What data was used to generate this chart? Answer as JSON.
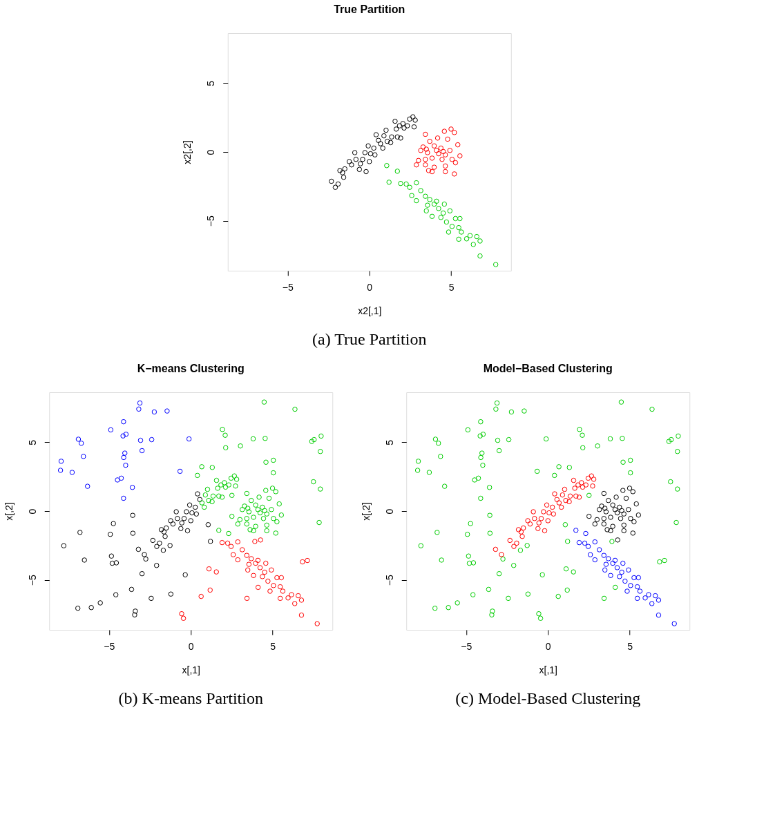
{
  "chart_data": [
    {
      "type": "scatter",
      "title": "True Partition",
      "xlabel": "x2[,1]",
      "ylabel": "x2[,2]",
      "annotations": [
        "(a) True Partition"
      ],
      "xlim": [
        -8.65,
        8.65
      ],
      "ylim": [
        -8.63,
        8.63
      ],
      "xticks": [
        -5,
        0,
        5
      ],
      "yticks": [
        -5,
        0,
        5
      ],
      "marker": "circle",
      "grid": false,
      "legend": false,
      "series": [
        {
          "color": "#000000",
          "x": [
            -2.32,
            -2.08,
            -1.91,
            -1.8,
            -1.57,
            -1.5,
            -1.23,
            -1.09,
            -0.89,
            -0.61,
            -0.55,
            -0.41,
            -0.2,
            -0.27,
            -0.07,
            0.07,
            0.27,
            0.34,
            0.41,
            0.55,
            0.0,
            -0.82,
            -1.64,
            0.68,
            0.82,
            0.89,
            1.02,
            1.09,
            1.3,
            1.36,
            1.57,
            1.64,
            1.71,
            1.91,
            1.84,
            2.05,
            2.12,
            2.32,
            2.46,
            2.66,
            2.73,
            2.8
          ],
          "values": [
            -2.13,
            -2.57,
            -2.33,
            -1.35,
            -1.84,
            -1.23,
            -0.7,
            -0.94,
            -0.05,
            -1.27,
            -0.86,
            -0.54,
            -1.43,
            -0.05,
            0.44,
            -0.13,
            0.28,
            -0.21,
            1.25,
            0.84,
            -0.7,
            -0.54,
            -1.51,
            0.6,
            0.28,
            1.17,
            1.58,
            0.77,
            0.68,
            1.09,
            2.23,
            1.66,
            1.09,
            1.01,
            1.9,
            2.06,
            1.74,
            1.9,
            2.39,
            2.55,
            1.82,
            2.31
          ]
        },
        {
          "color": "#ff0000",
          "x": [
            3.42,
            4.58,
            4.99,
            5.19,
            4.17,
            4.78,
            3.69,
            5.4,
            3.28,
            3.96,
            4.37,
            4.92,
            3.14,
            3.55,
            4.23,
            4.64,
            5.53,
            3.0,
            3.42,
            3.83,
            4.44,
            5.05,
            2.87,
            3.42,
            3.96,
            4.64,
            5.26,
            3.62,
            3.83,
            4.64,
            5.19,
            4.1,
            4.51,
            3.48
          ],
          "values": [
            1.28,
            1.5,
            1.66,
            1.41,
            1.01,
            0.93,
            0.77,
            0.52,
            0.36,
            0.44,
            0.28,
            0.11,
            0.11,
            -0.05,
            -0.13,
            -0.21,
            -0.29,
            -0.62,
            -0.54,
            -0.45,
            -0.54,
            -0.54,
            -0.94,
            -0.94,
            -1.11,
            -1.02,
            -0.78,
            -1.35,
            -1.43,
            -1.43,
            -1.6,
            0.11,
            0.03,
            0.2
          ]
        },
        {
          "color": "#00cd00",
          "x": [
            1.06,
            1.2,
            1.71,
            1.91,
            2.25,
            2.87,
            2.46,
            3.14,
            2.59,
            3.42,
            2.87,
            3.69,
            3.96,
            3.55,
            4.58,
            3.48,
            4.23,
            3.83,
            4.51,
            4.92,
            4.71,
            5.26,
            5.53,
            4.37,
            5.05,
            5.46,
            4.84,
            5.62,
            5.46,
            6.15,
            5.94,
            6.56,
            6.35,
            6.76,
            6.76,
            7.72,
            4.1
          ],
          "values": [
            -0.99,
            -2.2,
            -1.4,
            -2.29,
            -2.33,
            -2.24,
            -2.57,
            -2.81,
            -3.17,
            -3.22,
            -3.54,
            -3.46,
            -3.79,
            -3.87,
            -3.79,
            -4.28,
            -4.11,
            -4.68,
            -4.44,
            -4.28,
            -5.09,
            -4.84,
            -4.84,
            -4.76,
            -5.41,
            -5.5,
            -5.82,
            -5.82,
            -6.34,
            -6.08,
            -6.31,
            -6.15,
            -6.72,
            -6.47,
            -7.56,
            -8.18,
            -3.58
          ]
        }
      ]
    },
    {
      "type": "scatter",
      "title": "K−means Clustering",
      "xlabel": "x[,1]",
      "ylabel": "x[,2]",
      "annotations": [
        "(b) K-means Partition"
      ],
      "xlim": [
        -8.65,
        8.65
      ],
      "ylim": [
        -8.63,
        8.63
      ],
      "xticks": [
        -5,
        0,
        5
      ],
      "yticks": [
        -5,
        0,
        5
      ],
      "marker": "circle",
      "grid": false,
      "legend": false,
      "series": [
        {
          "color": "#000000",
          "x": [
            -2.32,
            -2.08,
            -1.91,
            -1.8,
            -1.57,
            -1.5,
            -1.23,
            -1.09,
            -0.89,
            -0.61,
            -0.55,
            -0.41,
            -0.2,
            -0.27,
            -0.07,
            0.07,
            0.27,
            0.34,
            0.41,
            0.55,
            0.0,
            -0.82,
            -1.64,
            1.06,
            1.2,
            -3.55,
            -4.73,
            -6.77,
            -4.92,
            -3.54,
            -7.76,
            -2.75,
            -4.85,
            -4.8,
            -4.55,
            -6.5,
            -2.09,
            -2.98,
            -0.34,
            -3.62,
            -4.58,
            -2.42,
            -1.22,
            -5.53,
            -6.08,
            -6.9,
            -3.39,
            -3.43,
            -1.27,
            -1.68,
            -3.2,
            -2.84
          ],
          "values": [
            -2.13,
            -2.57,
            -2.33,
            -1.35,
            -1.84,
            -1.23,
            -0.7,
            -0.94,
            -0.05,
            -1.27,
            -0.86,
            -0.54,
            -1.43,
            -0.05,
            0.44,
            -0.13,
            0.28,
            -0.21,
            1.25,
            0.84,
            -0.7,
            -0.54,
            -1.51,
            -0.99,
            -2.2,
            -0.31,
            -0.91,
            -1.55,
            -1.69,
            -1.61,
            -2.52,
            -3.48,
            -3.27,
            -3.79,
            -3.76,
            -3.56,
            -3.95,
            -4.55,
            -4.63,
            -5.69,
            -6.08,
            -6.34,
            -6.03,
            -6.67,
            -7.01,
            -7.06,
            -7.27,
            -7.54,
            -2.5,
            -2.85,
            -2.78,
            -3.16
          ]
        },
        {
          "color": "#00cd00",
          "x": [
            0.68,
            0.82,
            0.89,
            1.02,
            1.09,
            1.3,
            1.36,
            1.57,
            1.64,
            1.71,
            1.91,
            1.84,
            2.05,
            2.12,
            2.32,
            2.46,
            2.66,
            2.73,
            2.8,
            3.42,
            4.58,
            4.99,
            5.19,
            4.17,
            4.78,
            3.69,
            5.4,
            3.28,
            3.96,
            4.37,
            4.92,
            3.14,
            3.55,
            4.23,
            4.64,
            5.53,
            3.0,
            3.42,
            3.83,
            4.44,
            5.05,
            2.87,
            3.42,
            3.96,
            4.64,
            5.26,
            3.62,
            3.83,
            4.64,
            5.19,
            4.1,
            4.51,
            3.48,
            1.71,
            4.48,
            6.36,
            1.93,
            2.1,
            2.13,
            3.03,
            3.81,
            4.54,
            7.39,
            7.53,
            7.96,
            7.91,
            4.59,
            5.04,
            5.04,
            0.67,
            1.31,
            0.4,
            7.49,
            7.91,
            7.84,
            2.51,
            2.51,
            2.31
          ],
          "values": [
            0.6,
            0.28,
            1.17,
            1.58,
            0.77,
            0.68,
            1.09,
            2.23,
            1.66,
            1.09,
            1.01,
            1.9,
            2.06,
            1.74,
            1.9,
            2.39,
            2.55,
            1.82,
            2.31,
            1.28,
            1.5,
            1.66,
            1.41,
            1.01,
            0.93,
            0.77,
            0.52,
            0.36,
            0.44,
            0.28,
            0.11,
            0.11,
            -0.05,
            -0.13,
            -0.21,
            -0.29,
            -0.62,
            -0.54,
            -0.45,
            -0.54,
            -0.54,
            -0.94,
            -0.94,
            -1.11,
            -1.02,
            -0.78,
            -1.35,
            -1.43,
            -1.43,
            -1.6,
            0.11,
            0.03,
            0.2,
            -1.4,
            7.92,
            7.4,
            5.93,
            5.51,
            4.6,
            4.73,
            5.25,
            5.28,
            5.06,
            5.19,
            5.45,
            4.33,
            3.55,
            3.69,
            2.78,
            3.22,
            3.17,
            2.59,
            2.13,
            1.6,
            -0.83,
            1.14,
            -0.38,
            -1.63
          ]
        },
        {
          "color": "#ff0000",
          "x": [
            1.91,
            2.25,
            2.87,
            2.46,
            3.14,
            2.59,
            3.42,
            2.87,
            3.69,
            3.96,
            3.55,
            4.58,
            3.48,
            4.23,
            3.83,
            4.51,
            4.92,
            4.71,
            5.26,
            5.53,
            4.37,
            5.05,
            5.46,
            4.84,
            5.62,
            5.46,
            6.15,
            5.94,
            6.56,
            6.35,
            6.76,
            6.76,
            7.72,
            4.1,
            1.11,
            1.56,
            1.18,
            0.63,
            3.43,
            4.11,
            6.82,
            7.12,
            -0.56,
            -0.45,
            4.26,
            3.91
          ],
          "values": [
            -2.29,
            -2.33,
            -2.24,
            -2.57,
            -2.81,
            -3.17,
            -3.22,
            -3.54,
            -3.46,
            -3.79,
            -3.87,
            -3.79,
            -4.28,
            -4.11,
            -4.68,
            -4.44,
            -4.28,
            -5.09,
            -4.84,
            -4.84,
            -4.76,
            -5.41,
            -5.5,
            -5.82,
            -5.82,
            -6.34,
            -6.08,
            -6.31,
            -6.15,
            -6.72,
            -6.47,
            -7.56,
            -8.18,
            -3.58,
            -4.2,
            -4.42,
            -5.74,
            -6.2,
            -6.34,
            -5.54,
            -3.69,
            -3.59,
            -7.46,
            -7.79,
            -2.1,
            -2.21
          ]
        },
        {
          "color": "#0000ff",
          "x": [
            -3.11,
            -3.18,
            -2.23,
            -1.45,
            -4.11,
            -4.89,
            -4.14,
            -3.96,
            -6.87,
            -6.69,
            -3.07,
            -2.39,
            -0.11,
            -2.98,
            -6.56,
            -4.03,
            -4.1,
            -3.98,
            -7.92,
            -7.96,
            -7.25,
            -0.66,
            -4.48,
            -4.25,
            -6.31,
            -3.57,
            -4.11
          ],
          "values": [
            7.85,
            7.41,
            7.2,
            7.27,
            6.49,
            5.9,
            5.46,
            5.58,
            5.22,
            4.93,
            5.14,
            5.19,
            5.24,
            4.39,
            3.97,
            4.21,
            3.89,
            3.33,
            3.62,
            2.96,
            2.81,
            2.89,
            2.26,
            2.39,
            1.8,
            1.72,
            0.93
          ]
        }
      ]
    },
    {
      "type": "scatter",
      "title": "Model−Based Clustering",
      "xlabel": "x[,1]",
      "ylabel": "x[,2]",
      "annotations": [
        "(c) Model-Based Clustering"
      ],
      "xlim": [
        -8.65,
        8.65
      ],
      "ylim": [
        -8.63,
        8.63
      ],
      "xticks": [
        -5,
        0,
        5
      ],
      "yticks": [
        -5,
        0,
        5
      ],
      "marker": "circle",
      "grid": false,
      "legend": false,
      "series": [
        {
          "color": "#00cd00",
          "x": [
            -3.11,
            -3.18,
            -2.23,
            -1.45,
            -4.11,
            -4.89,
            -4.14,
            -3.96,
            -6.87,
            -6.69,
            -3.07,
            -2.39,
            -0.11,
            -2.98,
            -6.56,
            -4.03,
            -4.1,
            -3.98,
            -7.92,
            -7.96,
            -7.25,
            -0.66,
            -4.48,
            -4.25,
            -6.31,
            -3.57,
            -4.11,
            -3.55,
            -4.73,
            -6.77,
            -4.92,
            -3.54,
            -7.76,
            -2.75,
            -4.85,
            -4.8,
            -4.55,
            -6.5,
            -2.09,
            -2.98,
            -0.34,
            -3.62,
            -4.58,
            -2.42,
            -1.22,
            -5.53,
            -6.08,
            -6.9,
            -3.39,
            -3.43,
            -1.27,
            -1.68,
            4.48,
            6.36,
            1.93,
            2.1,
            2.13,
            3.03,
            3.81,
            4.54,
            7.39,
            7.53,
            7.96,
            7.91,
            4.59,
            5.04,
            5.04,
            0.67,
            1.31,
            0.4,
            7.49,
            7.91,
            7.84,
            2.51,
            1.11,
            1.56,
            1.18,
            0.63,
            3.43,
            4.11,
            6.82,
            7.12,
            -0.56,
            -0.45,
            3.91,
            1.06,
            1.2
          ],
          "values": [
            7.85,
            7.41,
            7.2,
            7.27,
            6.49,
            5.9,
            5.46,
            5.58,
            5.22,
            4.93,
            5.14,
            5.19,
            5.24,
            4.39,
            3.97,
            4.21,
            3.89,
            3.33,
            3.62,
            2.96,
            2.81,
            2.89,
            2.26,
            2.39,
            1.8,
            1.72,
            0.93,
            -0.31,
            -0.91,
            -1.55,
            -1.69,
            -1.61,
            -2.52,
            -3.48,
            -3.27,
            -3.79,
            -3.76,
            -3.56,
            -3.95,
            -4.55,
            -4.63,
            -5.69,
            -6.08,
            -6.34,
            -6.03,
            -6.67,
            -7.01,
            -7.06,
            -7.27,
            -7.54,
            -2.5,
            -2.85,
            7.92,
            7.4,
            5.93,
            5.51,
            4.6,
            4.73,
            5.25,
            5.28,
            5.06,
            5.19,
            5.45,
            4.33,
            3.55,
            3.69,
            2.78,
            3.22,
            3.17,
            2.59,
            2.13,
            1.6,
            -0.83,
            1.14,
            -4.2,
            -4.42,
            -5.74,
            -6.2,
            -6.34,
            -5.54,
            -3.69,
            -3.59,
            -7.46,
            -7.79,
            -2.21,
            -0.99,
            -2.2
          ]
        },
        {
          "color": "#ff0000",
          "x": [
            -2.32,
            -2.08,
            -1.91,
            -1.8,
            -1.57,
            -1.5,
            -1.23,
            -1.09,
            -0.89,
            -0.61,
            -0.55,
            -0.41,
            -0.2,
            -0.27,
            -0.07,
            0.07,
            0.27,
            0.34,
            0.41,
            0.55,
            0.0,
            -0.82,
            -1.64,
            0.68,
            0.82,
            0.89,
            1.02,
            1.09,
            1.3,
            1.36,
            1.57,
            1.64,
            1.71,
            1.91,
            1.84,
            2.05,
            2.12,
            2.32,
            2.46,
            2.66,
            2.73,
            2.8,
            -3.2,
            -2.84
          ],
          "values": [
            -2.13,
            -2.57,
            -2.33,
            -1.35,
            -1.84,
            -1.23,
            -0.7,
            -0.94,
            -0.05,
            -1.27,
            -0.86,
            -0.54,
            -1.43,
            -0.05,
            0.44,
            -0.13,
            0.28,
            -0.21,
            1.25,
            0.84,
            -0.7,
            -0.54,
            -1.51,
            0.6,
            0.28,
            1.17,
            1.58,
            0.77,
            0.68,
            1.09,
            2.23,
            1.66,
            1.09,
            1.01,
            1.9,
            2.06,
            1.74,
            1.9,
            2.39,
            2.55,
            1.82,
            2.31,
            -2.78,
            -3.16
          ]
        },
        {
          "color": "#000000",
          "x": [
            3.42,
            4.58,
            4.99,
            5.19,
            4.17,
            4.78,
            3.69,
            5.4,
            3.28,
            3.96,
            4.37,
            4.92,
            3.14,
            3.55,
            4.23,
            4.64,
            5.53,
            3.0,
            3.42,
            3.83,
            4.44,
            5.05,
            2.87,
            3.42,
            3.96,
            4.64,
            5.26,
            3.62,
            3.83,
            4.64,
            5.19,
            4.1,
            4.51,
            3.48,
            2.51,
            4.26
          ],
          "values": [
            1.28,
            1.5,
            1.66,
            1.41,
            1.01,
            0.93,
            0.77,
            0.52,
            0.36,
            0.44,
            0.28,
            0.11,
            0.11,
            -0.05,
            -0.13,
            -0.21,
            -0.29,
            -0.62,
            -0.54,
            -0.45,
            -0.54,
            -0.54,
            -0.94,
            -0.94,
            -1.11,
            -1.02,
            -0.78,
            -1.35,
            -1.43,
            -1.43,
            -1.6,
            0.11,
            0.03,
            0.2,
            -0.38,
            -2.1
          ]
        },
        {
          "color": "#0000ff",
          "x": [
            1.71,
            1.91,
            2.25,
            2.87,
            2.46,
            3.14,
            2.59,
            3.42,
            2.87,
            3.69,
            3.96,
            3.55,
            4.58,
            3.48,
            4.23,
            3.83,
            4.51,
            4.92,
            4.71,
            5.26,
            5.53,
            4.37,
            5.05,
            5.46,
            4.84,
            5.62,
            5.46,
            6.15,
            5.94,
            6.56,
            6.35,
            6.76,
            6.76,
            7.72,
            4.1,
            2.31
          ],
          "values": [
            -1.4,
            -2.29,
            -2.33,
            -2.24,
            -2.57,
            -2.81,
            -3.17,
            -3.22,
            -3.54,
            -3.46,
            -3.79,
            -3.87,
            -3.79,
            -4.28,
            -4.11,
            -4.68,
            -4.44,
            -4.28,
            -5.09,
            -4.84,
            -4.84,
            -4.76,
            -5.41,
            -5.5,
            -5.82,
            -5.82,
            -6.34,
            -6.08,
            -6.31,
            -6.15,
            -6.72,
            -6.47,
            -7.56,
            -8.18,
            -3.58,
            -1.63
          ]
        }
      ]
    }
  ]
}
